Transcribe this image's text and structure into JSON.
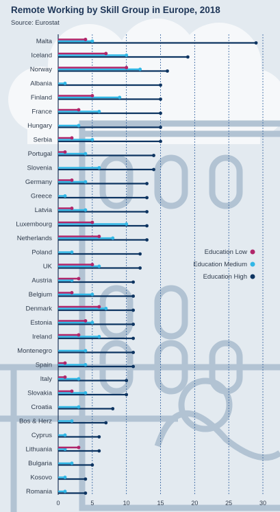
{
  "title": "Remote Working by Skill Group in Europe, 2018",
  "source": "Source: Eurostat",
  "colors": {
    "low": "#b0266a",
    "medium": "#31b7e6",
    "high": "#0d3461",
    "grid": "#2b5c9c",
    "text": "#2f3b4c"
  },
  "chart_data": {
    "type": "bar",
    "orientation": "horizontal",
    "title": "Remote Working by Skill Group in Europe, 2018",
    "xlim": [
      0,
      30
    ],
    "xticks": [
      0,
      5,
      10,
      15,
      20,
      25,
      30
    ],
    "grid": true,
    "legend_position": "right-middle",
    "categories": [
      "Malta",
      "Iceland",
      "Norway",
      "Albania",
      "Finland",
      "France",
      "Hungary",
      "Serbia",
      "Portugal",
      "Slovenia",
      "Germany",
      "Greece",
      "Latvia",
      "Luxembourg",
      "Netherlands",
      "Poland",
      "UK",
      "Austria",
      "Belgium",
      "Denmark",
      "Estonia",
      "Ireland",
      "Montenegro",
      "Spain",
      "Italy",
      "Slovakia",
      "Croatia",
      "Bos & Herz",
      "Cyprus",
      "Lithuania",
      "Bulgaria",
      "Kosovo",
      "Romania"
    ],
    "series": [
      {
        "name": "Education Low",
        "color": "#b0266a",
        "values": [
          4,
          7,
          10,
          0,
          5,
          3,
          0,
          2,
          1,
          0,
          2,
          0,
          2,
          5,
          6,
          0,
          5,
          3,
          2,
          6,
          4,
          3,
          0,
          1,
          1,
          2,
          0,
          0,
          0,
          3,
          0,
          0,
          0
        ]
      },
      {
        "name": "Education Medium",
        "color": "#31b7e6",
        "values": [
          5,
          10,
          12,
          1,
          9,
          6,
          3,
          5,
          4,
          6,
          4,
          1,
          4,
          10,
          8,
          2,
          6,
          2,
          5,
          7,
          5,
          6,
          4,
          4,
          3,
          4,
          3,
          2,
          1,
          1,
          2,
          1,
          1
        ]
      },
      {
        "name": "Education High",
        "color": "#0d3461",
        "values": [
          29,
          19,
          16,
          15,
          15,
          15,
          15,
          15,
          14,
          14,
          13,
          13,
          13,
          13,
          13,
          12,
          12,
          11,
          11,
          11,
          11,
          11,
          11,
          11,
          10,
          10,
          8,
          7,
          6,
          6,
          5,
          4,
          4
        ]
      }
    ]
  }
}
